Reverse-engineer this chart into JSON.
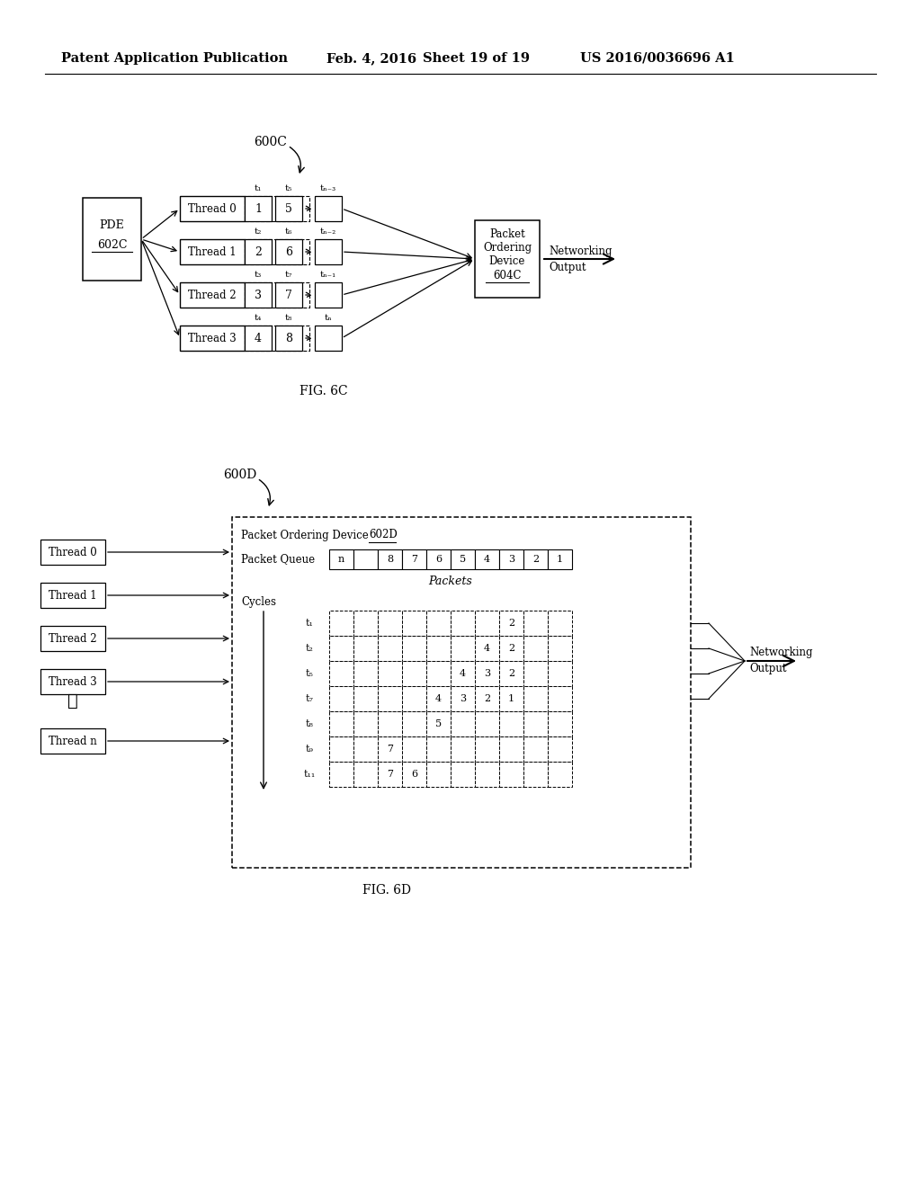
{
  "bg_color": "#ffffff",
  "header_left": "Patent Application Publication",
  "header_date": "Feb. 4, 2016",
  "header_sheet": "Sheet 19 of 19",
  "header_patent": "US 2016/0036696 A1",
  "fig6c_label": "600C",
  "fig6c_caption": "FIG. 6C",
  "fig6d_label": "600D",
  "fig6d_caption": "FIG. 6D",
  "threads_6c": [
    "Thread 0",
    "Thread 1",
    "Thread 2",
    "Thread 3"
  ],
  "thread_vals_6c": [
    [
      "1",
      "5"
    ],
    [
      "2",
      "6"
    ],
    [
      "3",
      "7"
    ],
    [
      "4",
      "8"
    ]
  ],
  "pde_lines": [
    "PDE",
    "602C"
  ],
  "pod_6c_lines": [
    "Packet",
    "Ordering",
    "Device",
    "604C"
  ],
  "net_out_6c": "Networking\nOutput",
  "threads_6d": [
    "Thread 0",
    "Thread 1",
    "Thread 2",
    "Thread 3",
    "Thread n"
  ],
  "pod_6d_title": "Packet Ordering Device ",
  "pod_6d_id": "602D",
  "pq_label": "Packet Queue",
  "pq_vals": [
    "n",
    "",
    "8",
    "7",
    "6",
    "5",
    "4",
    "3",
    "2",
    "1"
  ],
  "packets_italic": "Packets",
  "cycles_label": "Cycles",
  "cycle_times": [
    "t₁",
    "t₂",
    "t₅",
    "t₇",
    "t₈",
    "t₉",
    "t₁₁"
  ],
  "cycle_grid": [
    [
      "",
      "",
      "",
      "",
      "",
      "",
      "",
      "2",
      "",
      ""
    ],
    [
      "",
      "",
      "",
      "",
      "",
      "",
      "4",
      "2",
      "",
      ""
    ],
    [
      "",
      "",
      "",
      "",
      "",
      "4",
      "3",
      "2",
      "",
      ""
    ],
    [
      "",
      "",
      "",
      "",
      "4",
      "3",
      "2",
      "1",
      "",
      ""
    ],
    [
      "",
      "",
      "",
      "",
      "5",
      "",
      "",
      "",
      "",
      ""
    ],
    [
      "",
      "",
      "7",
      "",
      "",
      "",
      "",
      "",
      "",
      ""
    ],
    [
      "",
      "",
      "7",
      "6",
      "",
      "",
      "",
      "",
      "",
      ""
    ]
  ],
  "net_out_6d": "Networking\nOutput"
}
